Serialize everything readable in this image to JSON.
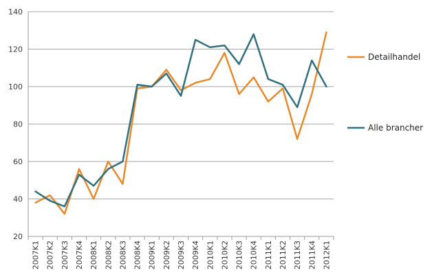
{
  "chart_data": {
    "type": "line",
    "title": "",
    "xlabel": "",
    "ylabel": "",
    "ylim": [
      20,
      140
    ],
    "yticks": [
      20,
      40,
      60,
      80,
      100,
      120,
      140
    ],
    "grid": true,
    "legend_position": "right",
    "categories": [
      "2007K1",
      "2007K2",
      "2007K3",
      "2007K4",
      "2008K1",
      "2008K2",
      "2008K3",
      "2008K4",
      "2009K1",
      "2009K2",
      "2009K3",
      "2009K4",
      "2010K1",
      "2010K2",
      "2010K3",
      "2010K4",
      "2011K1",
      "2011K2",
      "2011K3",
      "2011K4",
      "2012K1"
    ],
    "series": [
      {
        "name": "Detailhandel",
        "color": "#e8892b",
        "values": [
          38,
          42,
          32,
          56,
          40,
          60,
          48,
          99,
          100,
          109,
          98,
          102,
          104,
          118,
          96,
          105,
          92,
          99,
          72,
          96,
          129
        ]
      },
      {
        "name": "Alle brancher",
        "color": "#2f6f80",
        "values": [
          44,
          39,
          36,
          53,
          47,
          56,
          60,
          101,
          100,
          107,
          95,
          125,
          121,
          122,
          112,
          128,
          104,
          101,
          89,
          114,
          100
        ]
      }
    ]
  }
}
